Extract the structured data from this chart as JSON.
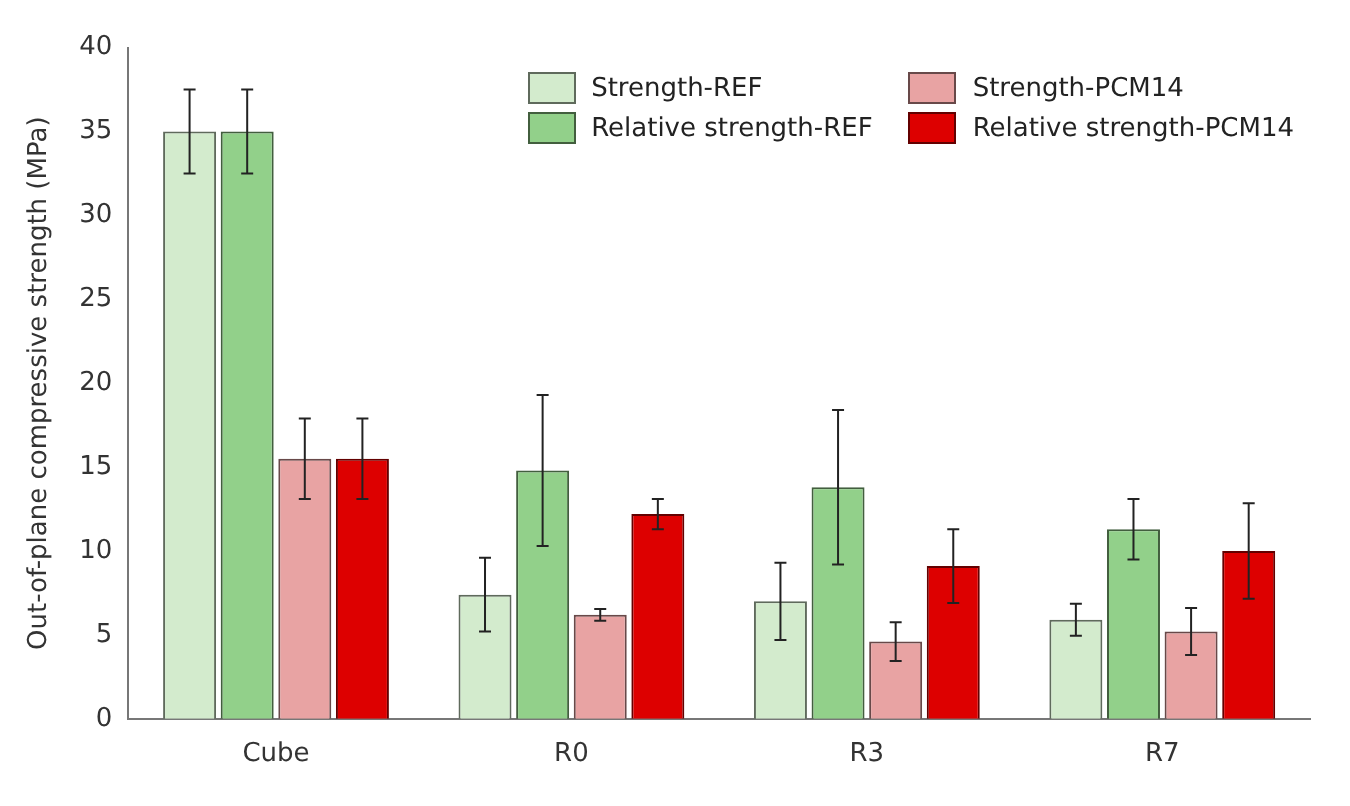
{
  "chart_data": {
    "type": "bar",
    "ylabel": "Out-of-plane compressive strength (MPa)",
    "categories": [
      "Cube",
      "R0",
      "R3",
      "R7"
    ],
    "series": [
      {
        "name": "Strength-REF",
        "color": "#d3ebcd",
        "values": [
          35,
          7.4,
          7.0,
          5.9
        ],
        "errors": [
          2.5,
          2.2,
          2.3,
          0.95
        ]
      },
      {
        "name": "Relative strength-REF",
        "color": "#92d08a",
        "values": [
          35,
          14.8,
          13.8,
          11.3
        ],
        "errors": [
          2.5,
          4.5,
          4.6,
          1.8
        ]
      },
      {
        "name": "Strength-PCM14",
        "color": "#e8a3a3",
        "values": [
          15.5,
          6.2,
          4.6,
          5.2
        ],
        "errors": [
          2.4,
          0.35,
          1.15,
          1.4
        ]
      },
      {
        "name": "Relative strength-PCM14",
        "color": "#dd0000",
        "values": [
          15.5,
          12.2,
          9.1,
          10.0
        ],
        "errors": [
          2.4,
          0.9,
          2.2,
          2.85
        ]
      }
    ],
    "ylim": [
      0,
      40
    ],
    "yticks": [
      0,
      5,
      10,
      15,
      20,
      25,
      30,
      35,
      40
    ],
    "grid": false,
    "legend": "top right"
  }
}
